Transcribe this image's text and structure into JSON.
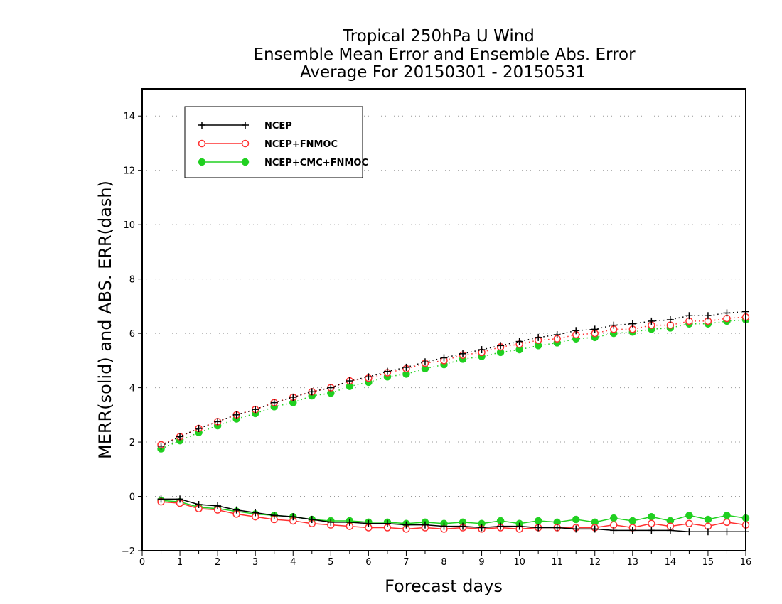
{
  "chart_data": {
    "type": "line",
    "title": [
      "Tropical 250hPa U Wind",
      "Ensemble Mean Error and Ensemble Abs. Error",
      "Average For 20150301 - 20150531"
    ],
    "xlabel": "Forecast days",
    "ylabel": "MERR(solid) and ABS. ERR(dash)",
    "xlim": [
      0,
      16
    ],
    "ylim": [
      -2,
      15
    ],
    "xticks": [
      0,
      1,
      2,
      3,
      4,
      5,
      6,
      7,
      8,
      9,
      10,
      11,
      12,
      13,
      14,
      15,
      16
    ],
    "yticks": [
      -2,
      0,
      2,
      4,
      6,
      8,
      10,
      12,
      14
    ],
    "ytick_labels": [
      "−2",
      "0",
      "2",
      "4",
      "6",
      "8",
      "10",
      "12",
      "14"
    ],
    "grid": "horizontal dotted",
    "legend_position": "top-left",
    "x": [
      0.5,
      1,
      1.5,
      2,
      2.5,
      3,
      3.5,
      4,
      4.5,
      5,
      5.5,
      6,
      6.5,
      7,
      7.5,
      8,
      8.5,
      9,
      9.5,
      10,
      10.5,
      11,
      11.5,
      12,
      12.5,
      13,
      13.5,
      14,
      14.5,
      15,
      15.5,
      16
    ],
    "series": [
      {
        "name": "NCEP",
        "color": "#000000",
        "marker": "plus",
        "abs_err": [
          1.85,
          2.2,
          2.5,
          2.75,
          3.0,
          3.2,
          3.45,
          3.65,
          3.85,
          4.0,
          4.25,
          4.4,
          4.6,
          4.75,
          4.95,
          5.1,
          5.25,
          5.4,
          5.55,
          5.7,
          5.85,
          5.95,
          6.1,
          6.15,
          6.3,
          6.35,
          6.45,
          6.5,
          6.65,
          6.65,
          6.75,
          6.8
        ],
        "mean_err": [
          -0.1,
          -0.1,
          -0.3,
          -0.35,
          -0.5,
          -0.6,
          -0.7,
          -0.75,
          -0.85,
          -0.95,
          -0.95,
          -1.0,
          -1.0,
          -1.05,
          -1.05,
          -1.1,
          -1.1,
          -1.15,
          -1.1,
          -1.1,
          -1.15,
          -1.15,
          -1.2,
          -1.2,
          -1.25,
          -1.25,
          -1.25,
          -1.25,
          -1.3,
          -1.3,
          -1.3,
          -1.3
        ]
      },
      {
        "name": "NCEP+FNMOC",
        "color": "#ff3030",
        "marker": "open-circle",
        "abs_err": [
          1.9,
          2.2,
          2.5,
          2.75,
          3.0,
          3.2,
          3.45,
          3.65,
          3.85,
          4.0,
          4.25,
          4.35,
          4.55,
          4.7,
          4.9,
          5.0,
          5.2,
          5.3,
          5.5,
          5.6,
          5.75,
          5.8,
          5.95,
          6.0,
          6.15,
          6.15,
          6.3,
          6.3,
          6.45,
          6.45,
          6.55,
          6.6
        ],
        "mean_err": [
          -0.2,
          -0.25,
          -0.45,
          -0.5,
          -0.65,
          -0.75,
          -0.85,
          -0.9,
          -1.0,
          -1.05,
          -1.1,
          -1.15,
          -1.15,
          -1.2,
          -1.15,
          -1.2,
          -1.15,
          -1.2,
          -1.15,
          -1.2,
          -1.15,
          -1.15,
          -1.15,
          -1.15,
          -1.05,
          -1.15,
          -1.0,
          -1.1,
          -1.0,
          -1.1,
          -0.95,
          -1.05
        ]
      },
      {
        "name": "NCEP+CMC+FNMOC",
        "color": "#20d020",
        "marker": "filled-circle",
        "abs_err": [
          1.75,
          2.05,
          2.35,
          2.6,
          2.85,
          3.05,
          3.3,
          3.45,
          3.7,
          3.8,
          4.05,
          4.2,
          4.4,
          4.5,
          4.7,
          4.85,
          5.05,
          5.15,
          5.3,
          5.4,
          5.55,
          5.65,
          5.8,
          5.85,
          6.0,
          6.05,
          6.15,
          6.2,
          6.35,
          6.35,
          6.45,
          6.5
        ],
        "mean_err": [
          -0.15,
          -0.2,
          -0.4,
          -0.45,
          -0.55,
          -0.65,
          -0.7,
          -0.75,
          -0.85,
          -0.9,
          -0.9,
          -0.95,
          -0.95,
          -1.0,
          -0.95,
          -1.0,
          -0.95,
          -1.0,
          -0.9,
          -1.0,
          -0.9,
          -0.95,
          -0.85,
          -0.95,
          -0.8,
          -0.9,
          -0.75,
          -0.9,
          -0.7,
          -0.85,
          -0.7,
          -0.8
        ]
      }
    ]
  }
}
